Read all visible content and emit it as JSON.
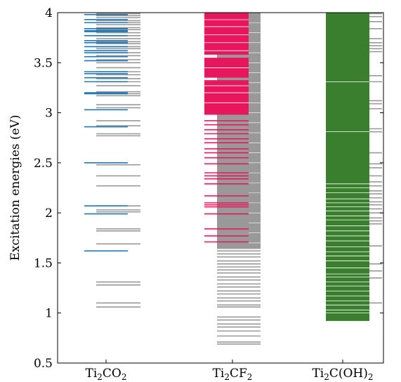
{
  "chart_data": {
    "type": "energy-level",
    "title": "",
    "xlabel": "",
    "ylabel": "Excitation energies (eV)",
    "ylim": [
      0.5,
      4.0
    ],
    "yticks": [
      "0.5",
      "1",
      "1.5",
      "2",
      "2.5",
      "3",
      "3.5",
      "4"
    ],
    "categories": [
      {
        "name": "Ti2CO2",
        "label_main": "Ti",
        "label_sub1": "2",
        "label_mid": "CO",
        "label_sub2": "2",
        "label_end": ""
      },
      {
        "name": "Ti2CF2",
        "label_main": "Ti",
        "label_sub1": "2",
        "label_mid": "CF",
        "label_sub2": "2",
        "label_end": ""
      },
      {
        "name": "Ti2C(OH)2",
        "label_main": "Ti",
        "label_sub1": "2",
        "label_mid": "C(OH)",
        "label_sub2": "2",
        "label_end": ""
      }
    ],
    "series_colors": {
      "Ti2CO2": "#1f77b4",
      "Ti2CF2": "#e8175d",
      "Ti2C(OH)2": "#3a7f2e",
      "reference": "#999999"
    },
    "levels": {
      "Ti2CO2": {
        "colored": [
          1.62,
          1.99,
          2.07,
          2.5,
          2.86,
          3.03,
          3.19,
          3.2,
          3.31,
          3.35,
          3.39,
          3.41,
          3.52,
          3.56,
          3.6,
          3.62,
          3.66,
          3.7,
          3.72,
          3.77,
          3.81,
          3.82,
          3.84,
          3.9,
          3.93,
          3.98
        ],
        "gray": [
          1.06,
          1.1,
          1.28,
          1.31,
          1.69,
          1.82,
          1.84,
          2.01,
          2.03,
          2.07,
          2.27,
          2.37,
          2.48,
          2.77,
          2.79,
          2.87,
          2.92,
          3.05,
          3.08,
          3.17,
          3.19,
          3.21,
          3.27,
          3.31,
          3.34,
          3.38,
          3.41,
          3.45,
          3.5,
          3.53,
          3.57,
          3.6,
          3.64,
          3.66,
          3.69,
          3.71,
          3.74,
          3.77,
          3.8,
          3.83,
          3.85,
          3.88,
          3.9,
          3.92,
          3.95,
          3.97,
          3.99
        ]
      },
      "Ti2CF2": {
        "colored_dense": [
          [
            2.98,
            3.31
          ],
          [
            3.35,
            3.55
          ],
          [
            3.58,
            4.0
          ]
        ],
        "colored": [
          1.71,
          1.77,
          1.84,
          1.99,
          2.06,
          2.08,
          2.1,
          2.17,
          2.29,
          2.34,
          2.37,
          2.4,
          2.49,
          2.55,
          2.6,
          2.64,
          2.7,
          2.74,
          2.79,
          2.83,
          2.88,
          2.92,
          3.31,
          3.32
        ],
        "gray_dense": [
          [
            1.64,
            4.0
          ]
        ],
        "gray": [
          0.69,
          0.71,
          0.77,
          0.82,
          0.86,
          0.89,
          0.93,
          0.96,
          1.06,
          1.08,
          1.12,
          1.15,
          1.19,
          1.22,
          1.26,
          1.29,
          1.33,
          1.36,
          1.4,
          1.43,
          1.46,
          1.49,
          1.52,
          1.56,
          1.59,
          1.62
        ]
      },
      "Ti2C(OH)2": {
        "colored_dense": [
          [
            0.92,
            4.0
          ]
        ],
        "colored": [],
        "gray": [
          1.1,
          1.35,
          1.42,
          1.49,
          1.67,
          1.89,
          1.92,
          1.95,
          2.0,
          2.04,
          2.08,
          2.11,
          2.15,
          2.19,
          2.22,
          2.27,
          2.31,
          2.37,
          2.45,
          2.49,
          2.6,
          2.81,
          2.84,
          3.04,
          3.09,
          3.12,
          3.31,
          3.37,
          3.61,
          3.64,
          3.67,
          3.7,
          3.74,
          3.84,
          3.91,
          3.96,
          3.99
        ]
      }
    }
  }
}
